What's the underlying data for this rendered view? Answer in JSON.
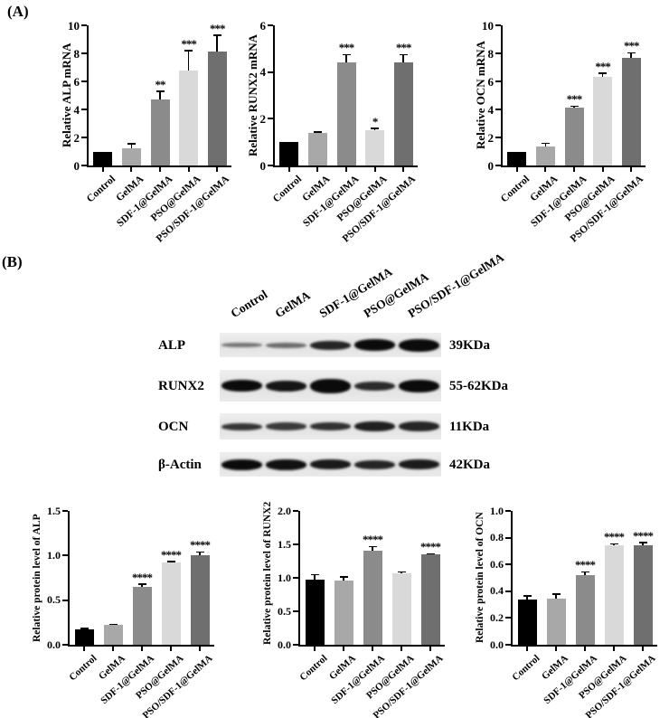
{
  "panels": {
    "a_label": "(A)",
    "b_label": "(B)"
  },
  "groups": [
    "Control",
    "GelMA",
    "SDF-1@GelMA",
    "PSO@GelMA",
    "PSO/SDF-1@GelMA"
  ],
  "bar_colors": [
    "#000000",
    "#a8a8a8",
    "#8b8b8b",
    "#d9d9d9",
    "#6f6f6f"
  ],
  "chart_data": [
    {
      "id": "relative-alp-mrna",
      "type": "bar",
      "ylabel": "Relative ALP mRNA",
      "categories": [
        "Control",
        "GelMA",
        "SDF-1@GelMA",
        "PSO@GelMA",
        "PSO/SDF-1@GelMA"
      ],
      "values": [
        1.0,
        1.25,
        4.7,
        6.8,
        8.1
      ],
      "errors": [
        0,
        0.3,
        0.6,
        1.4,
        1.2
      ],
      "significance": [
        "",
        "",
        "**",
        "***",
        "***"
      ],
      "ylim": [
        0,
        10
      ],
      "yticks": [
        "0",
        "2",
        "4",
        "6",
        "8",
        "10"
      ],
      "grid": false,
      "legend": "none"
    },
    {
      "id": "relative-runx2-mrna",
      "type": "bar",
      "ylabel": "Relative RUNX2 mRNA",
      "categories": [
        "Control",
        "GelMA",
        "SDF-1@GelMA",
        "PSO@GelMA",
        "PSO/SDF-1@GelMA"
      ],
      "values": [
        1.0,
        1.4,
        4.4,
        1.5,
        4.4
      ],
      "errors": [
        0,
        0.05,
        0.35,
        0.1,
        0.35
      ],
      "significance": [
        "",
        "",
        "***",
        "*",
        "***"
      ],
      "ylim": [
        0,
        6
      ],
      "yticks": [
        "0",
        "2",
        "4",
        "6"
      ],
      "grid": false,
      "legend": "none"
    },
    {
      "id": "relative-ocn-mrna",
      "type": "bar",
      "ylabel": "Relative OCN mRNA",
      "categories": [
        "Control",
        "GelMA",
        "SDF-1@GelMA",
        "PSO@GelMA",
        "PSO/SDF-1@GelMA"
      ],
      "values": [
        1.0,
        1.35,
        4.15,
        6.35,
        7.7
      ],
      "errors": [
        0,
        0.25,
        0.1,
        0.25,
        0.35
      ],
      "significance": [
        "",
        "",
        "***",
        "***",
        "***"
      ],
      "ylim": [
        0,
        10
      ],
      "yticks": [
        "0",
        "2",
        "4",
        "6",
        "8",
        "10"
      ],
      "grid": false,
      "legend": "none"
    },
    {
      "id": "relative-protein-level-of-alp",
      "type": "bar",
      "ylabel": "Relative protein level of ALP",
      "categories": [
        "Control",
        "GelMA",
        "SDF-1@GelMA",
        "PSO@GelMA",
        "PSO/SDF-1@GelMA"
      ],
      "values": [
        0.17,
        0.22,
        0.65,
        0.92,
        1.0
      ],
      "errors": [
        0.015,
        0.012,
        0.03,
        0.012,
        0.04
      ],
      "significance": [
        "",
        "",
        "****",
        "****",
        "****"
      ],
      "ylim": [
        0,
        1.5
      ],
      "yticks": [
        "0.0",
        "0.5",
        "1.0",
        "1.5"
      ],
      "grid": false,
      "legend": "none"
    },
    {
      "id": "relative-protein-level-of-runx2",
      "type": "bar",
      "ylabel": "Relative protein level of RUNX2",
      "categories": [
        "Control",
        "GelMA",
        "SDF-1@GelMA",
        "PSO@GelMA",
        "PSO/SDF-1@GelMA"
      ],
      "values": [
        0.97,
        0.96,
        1.41,
        1.07,
        1.35
      ],
      "errors": [
        0.08,
        0.06,
        0.06,
        0.02,
        0.012
      ],
      "significance": [
        "",
        "",
        "****",
        "",
        "****"
      ],
      "ylim": [
        0,
        2.0
      ],
      "yticks": [
        "0.0",
        "0.5",
        "1.0",
        "1.5",
        "2.0"
      ],
      "grid": false,
      "legend": "none"
    },
    {
      "id": "relative-protein-level-of-ocn",
      "type": "bar",
      "ylabel": "Relative protein level of OCN",
      "categories": [
        "Control",
        "GelMA",
        "SDF-1@GelMA",
        "PSO@GelMA",
        "PSO/SDF-1@GelMA"
      ],
      "values": [
        0.34,
        0.345,
        0.52,
        0.74,
        0.74
      ],
      "errors": [
        0.025,
        0.035,
        0.025,
        0.015,
        0.025
      ],
      "significance": [
        "",
        "",
        "****",
        "****",
        "****"
      ],
      "ylim": [
        0,
        1.0
      ],
      "yticks": [
        "0.0",
        "0.2",
        "0.4",
        "0.6",
        "0.8",
        "1.0"
      ],
      "grid": false,
      "legend": "none"
    }
  ],
  "western_blot": {
    "lane_labels": [
      "Control",
      "GelMA",
      "SDF-1@GelMA",
      "PSO@GelMA",
      "PSO/SDF-1@GelMA"
    ],
    "rows": [
      {
        "protein": "ALP",
        "molecular_weight": "39KDa",
        "band_intensities": [
          0.5,
          0.55,
          0.88,
          1,
          1
        ],
        "band_heights": [
          5,
          6,
          10,
          13,
          14
        ]
      },
      {
        "protein": "RUNX2",
        "molecular_weight": "55-62KDa",
        "band_intensities": [
          1,
          0.95,
          1,
          0.85,
          1
        ],
        "band_heights": [
          13,
          12,
          16,
          10,
          14
        ]
      },
      {
        "protein": "OCN",
        "molecular_weight": "11KDa",
        "band_intensities": [
          0.8,
          0.78,
          0.82,
          0.9,
          0.88
        ],
        "band_heights": [
          8,
          9,
          9,
          11,
          11
        ]
      },
      {
        "protein": "β-Actin",
        "molecular_weight": "42KDa",
        "band_intensities": [
          1,
          0.97,
          0.93,
          0.88,
          0.92
        ],
        "band_heights": [
          12,
          12,
          11,
          10,
          11
        ]
      }
    ]
  }
}
